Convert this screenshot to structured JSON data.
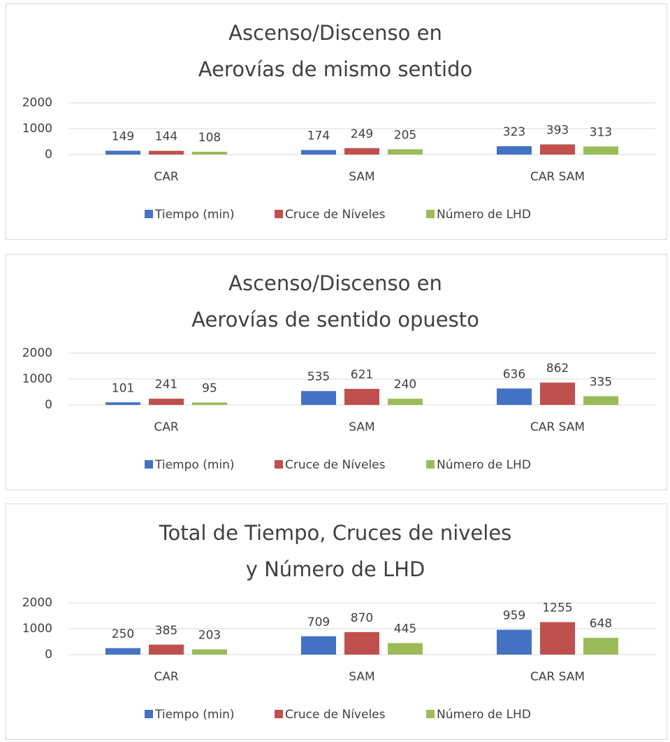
{
  "chart_data": [
    {
      "type": "bar",
      "title": [
        "Ascenso/Discenso en",
        "Aerovías de mismo sentido"
      ],
      "categories": [
        "CAR",
        "SAM",
        "CAR SAM"
      ],
      "series": [
        {
          "name": "Tiempo (min)",
          "color": "#4472c4",
          "values": [
            149,
            174,
            323
          ]
        },
        {
          "name": "Cruce de Níveles",
          "color": "#c0504d",
          "values": [
            144,
            249,
            393
          ]
        },
        {
          "name": "Número de LHD",
          "color": "#9bbb59",
          "values": [
            108,
            205,
            313
          ]
        }
      ],
      "ylim": [
        0,
        2000
      ],
      "yticks": [
        0,
        1000,
        2000
      ],
      "grid": true,
      "legend": "bottom"
    },
    {
      "type": "bar",
      "title": [
        "Ascenso/Discenso en",
        "Aerovías de sentido opuesto"
      ],
      "categories": [
        "CAR",
        "SAM",
        "CAR SAM"
      ],
      "series": [
        {
          "name": "Tiempo (min)",
          "color": "#4472c4",
          "values": [
            101,
            535,
            636
          ]
        },
        {
          "name": "Cruce de Níveles",
          "color": "#c0504d",
          "values": [
            241,
            621,
            862
          ]
        },
        {
          "name": "Número de LHD",
          "color": "#9bbb59",
          "values": [
            95,
            240,
            335
          ]
        }
      ],
      "ylim": [
        0,
        2000
      ],
      "yticks": [
        0,
        1000,
        2000
      ],
      "grid": true,
      "legend": "bottom"
    },
    {
      "type": "bar",
      "title": [
        "Total de Tiempo, Cruces de niveles",
        "y Número de LHD"
      ],
      "categories": [
        "CAR",
        "SAM",
        "CAR SAM"
      ],
      "series": [
        {
          "name": "Tiempo (min)",
          "color": "#4472c4",
          "values": [
            250,
            709,
            959
          ]
        },
        {
          "name": "Cruce de Níveles",
          "color": "#c0504d",
          "values": [
            385,
            870,
            1255
          ]
        },
        {
          "name": "Número de LHD",
          "color": "#9bbb59",
          "values": [
            203,
            445,
            648
          ]
        }
      ],
      "ylim": [
        0,
        2000
      ],
      "yticks": [
        0,
        1000,
        2000
      ],
      "grid": true,
      "legend": "bottom"
    }
  ]
}
